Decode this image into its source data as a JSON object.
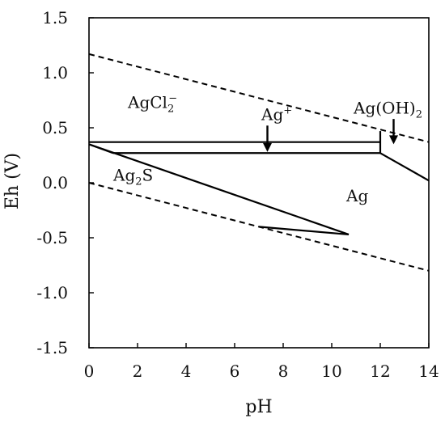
{
  "chart_data": {
    "type": "line",
    "xlabel": "pH",
    "ylabel": "Eh (V)",
    "xlim": [
      0,
      14
    ],
    "ylim": [
      -1.5,
      1.5
    ],
    "x_ticks": [
      "0",
      "2",
      "4",
      "6",
      "8",
      "10",
      "12",
      "14"
    ],
    "y_ticks": [
      "1.5",
      "1.0",
      "0.5",
      "0.0",
      "-0.5",
      "-1.0",
      "-1.5"
    ],
    "grid": false,
    "water_stability_lines": [
      {
        "x": [
          0,
          14
        ],
        "y": [
          1.17,
          0.37
        ]
      },
      {
        "x": [
          0,
          14
        ],
        "y": [
          0.0,
          -0.8
        ]
      }
    ],
    "boundaries": [
      {
        "x": [
          0,
          12
        ],
        "y": [
          0.37,
          0.37
        ]
      },
      {
        "x": [
          1,
          12
        ],
        "y": [
          0.27,
          0.27
        ]
      },
      {
        "x": [
          12,
          12
        ],
        "y": [
          0.27,
          0.47
        ]
      },
      {
        "x": [
          0,
          1
        ],
        "y": [
          0.35,
          0.27
        ]
      },
      {
        "x": [
          0,
          10.7
        ],
        "y": [
          0.35,
          -0.47
        ]
      },
      {
        "x": [
          7,
          10.7
        ],
        "y": [
          -0.4,
          -0.47
        ]
      },
      {
        "x": [
          12,
          14
        ],
        "y": [
          0.27,
          0.02
        ]
      }
    ],
    "region_labels": [
      {
        "id": "agcl2",
        "base": "AgCl",
        "sub": "2",
        "sup": "−",
        "x": 1.6,
        "y": 0.68
      },
      {
        "id": "agplus",
        "base": "Ag",
        "sup": "+",
        "x": 7.1,
        "y": 0.57
      },
      {
        "id": "agoh2",
        "base": "Ag(OH)",
        "sub": "2",
        "x": 10.9,
        "y": 0.63
      },
      {
        "id": "ag2s",
        "base": "Ag",
        "sub": "2",
        "tail": "S",
        "x": 1.0,
        "y": 0.02
      },
      {
        "id": "ag",
        "base": "Ag",
        "x": 10.6,
        "y": -0.17
      }
    ],
    "arrows": [
      {
        "id": "agplus",
        "x": 7.35,
        "y_from": 0.52,
        "y_to": 0.28
      },
      {
        "id": "agoh2",
        "x": 12.55,
        "y_from": 0.58,
        "y_to": 0.35
      }
    ]
  }
}
